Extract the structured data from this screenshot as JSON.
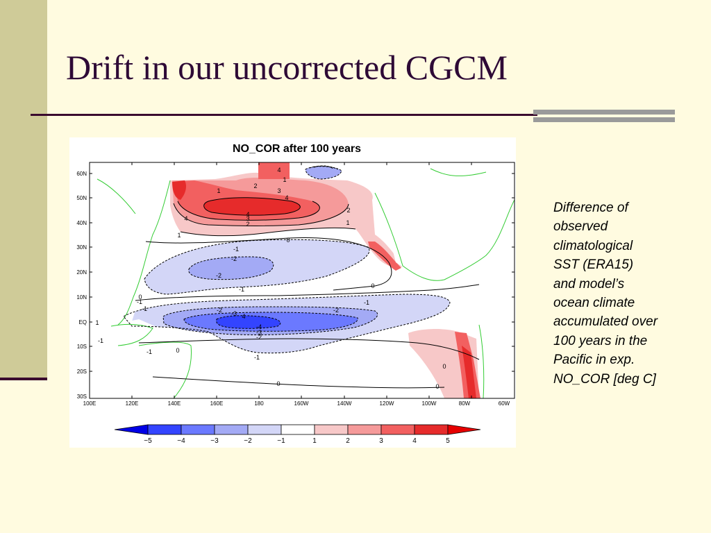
{
  "slide": {
    "title": "Drift in our uncorrected CGCM"
  },
  "figure": {
    "title": "NO_COR after 100 years",
    "lat_labels": [
      "60N",
      "50N",
      "40N",
      "30N",
      "20N",
      "10N",
      "EQ",
      "10S",
      "20S",
      "30S"
    ],
    "lon_labels": [
      "100E",
      "120E",
      "140E",
      "160E",
      "180",
      "160W",
      "140W",
      "120W",
      "100W",
      "80W",
      "60W"
    ],
    "colorbar": {
      "labels": [
        "−5",
        "−4",
        "−3",
        "−2",
        "−1",
        "1",
        "2",
        "3",
        "4",
        "5"
      ],
      "colors": [
        "#0000e6",
        "#3344ff",
        "#6b79ff",
        "#a3aaf5",
        "#d3d6f7",
        "#ffffff",
        "#f7c8c8",
        "#f59a9a",
        "#f26060",
        "#e62b2b",
        "#e60000"
      ]
    },
    "contour_labels": [
      "4",
      "1",
      "2",
      "3",
      "4",
      "1",
      "4",
      "3",
      "2",
      "2",
      "4",
      "1",
      "1",
      "0",
      "-1",
      "-2",
      "-2",
      "-1",
      "-1",
      "0",
      "-1",
      "-2",
      "-3",
      "4",
      "-4",
      "-3",
      "-2",
      "-2",
      "-1",
      "-1",
      "0",
      "-1",
      "0",
      "0",
      "-1",
      "1",
      "0",
      "0"
    ]
  },
  "caption": {
    "lines": [
      "Difference of",
      "observed",
      "climatological",
      "SST (ERA15)",
      "and model’s",
      "ocean climate",
      "accumulated over",
      "100 years in the",
      "Pacific in exp.",
      "NO_COR [deg C]"
    ]
  }
}
